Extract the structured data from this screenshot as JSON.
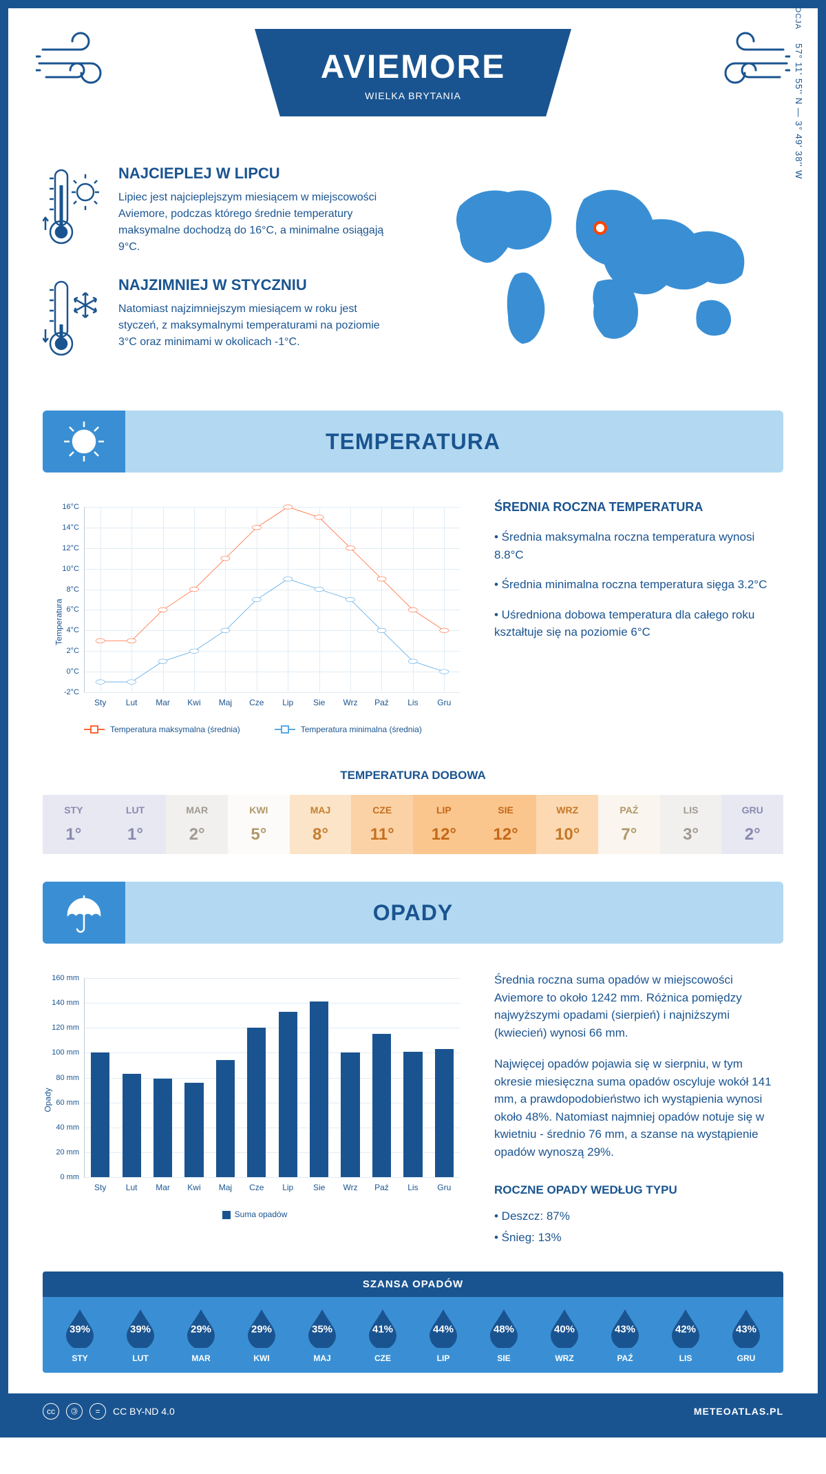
{
  "header": {
    "title": "AVIEMORE",
    "subtitle": "WIELKA BRYTANIA"
  },
  "intro": {
    "hot": {
      "heading": "NAJCIEPLEJ W LIPCU",
      "text": "Lipiec jest najcieplejszym miesiącem w miejscowości Aviemore, podczas którego średnie temperatury maksymalne dochodzą do 16°C, a minimalne osiągają 9°C."
    },
    "cold": {
      "heading": "NAJZIMNIEJ W STYCZNIU",
      "text": "Natomiast najzimniejszym miesiącem w roku jest styczeń, z maksymalnymi temperaturami na poziomie 3°C oraz minimami w okolicach -1°C."
    },
    "coords": "57° 11' 55'' N — 3° 49' 38'' W",
    "region": "SZKOCJA",
    "marker_pos": {
      "left_pct": 47,
      "top_pct": 26
    }
  },
  "temp_section": {
    "title": "TEMPERATURA",
    "side_heading": "ŚREDNIA ROCZNA TEMPERATURA",
    "bullets": [
      "• Średnia maksymalna roczna temperatura wynosi 8.8°C",
      "• Średnia minimalna roczna temperatura sięga 3.2°C",
      "• Uśredniona dobowa temperatura dla całego roku kształtuje się na poziomie 6°C"
    ],
    "chart": {
      "type": "line",
      "y_label": "Temperatura",
      "y_min": -2,
      "y_max": 16,
      "y_step": 2,
      "months": [
        "Sty",
        "Lut",
        "Mar",
        "Kwi",
        "Maj",
        "Cze",
        "Lip",
        "Sie",
        "Wrz",
        "Paź",
        "Lis",
        "Gru"
      ],
      "series": [
        {
          "label": "Temperatura maksymalna (średnia)",
          "color": "#ff6633",
          "values": [
            3,
            3,
            6,
            8,
            11,
            14,
            16,
            15,
            12,
            9,
            6,
            4
          ]
        },
        {
          "label": "Temperatura minimalna (średnia)",
          "color": "#5aa9e6",
          "values": [
            -1,
            -1,
            1,
            2,
            4,
            7,
            9,
            8,
            7,
            4,
            1,
            0
          ]
        }
      ],
      "grid_color": "#e0ecf5",
      "tick_suffix": "°C"
    },
    "daily": {
      "heading": "TEMPERATURA DOBOWA",
      "months": [
        "STY",
        "LUT",
        "MAR",
        "KWI",
        "MAJ",
        "CZE",
        "LIP",
        "SIE",
        "WRZ",
        "PAŹ",
        "LIS",
        "GRU"
      ],
      "values": [
        "1°",
        "1°",
        "2°",
        "5°",
        "8°",
        "11°",
        "12°",
        "12°",
        "10°",
        "7°",
        "3°",
        "2°"
      ],
      "cell_bg": [
        "#e8e8f2",
        "#e8e8f2",
        "#f2f0ee",
        "#fcfbf9",
        "#fce4c8",
        "#fbd2a6",
        "#fac68e",
        "#fac68e",
        "#fcd9b2",
        "#faf5ee",
        "#f2f0ee",
        "#e8e8f2"
      ],
      "cell_fg": [
        "#8a8ab0",
        "#8a8ab0",
        "#a09a90",
        "#b09868",
        "#c47f2f",
        "#c47020",
        "#c46818",
        "#c46818",
        "#c47828",
        "#b0986a",
        "#a09a90",
        "#8a8ab0"
      ]
    }
  },
  "precip_section": {
    "title": "OPADY",
    "text1": "Średnia roczna suma opadów w miejscowości Aviemore to około 1242 mm. Różnica pomiędzy najwyższymi opadami (sierpień) i najniższymi (kwiecień) wynosi 66 mm.",
    "text2": "Najwięcej opadów pojawia się w sierpniu, w tym okresie miesięczna suma opadów oscyluje wokół 141 mm, a prawdopodobieństwo ich wystąpienia wynosi około 48%. Natomiast najmniej opadów notuje się w kwietniu - średnio 76 mm, a szanse na wystąpienie opadów wynoszą 29%.",
    "chart": {
      "type": "bar",
      "y_label": "Opady",
      "y_min": 0,
      "y_max": 160,
      "y_step": 20,
      "months": [
        "Sty",
        "Lut",
        "Mar",
        "Kwi",
        "Maj",
        "Cze",
        "Lip",
        "Sie",
        "Wrz",
        "Paź",
        "Lis",
        "Gru"
      ],
      "values": [
        100,
        83,
        79,
        76,
        94,
        120,
        133,
        141,
        100,
        115,
        101,
        103
      ],
      "bar_color": "#1a5490",
      "legend_label": "Suma opadów",
      "tick_suffix": " mm"
    },
    "chance": {
      "heading": "SZANSA OPADÓW",
      "months": [
        "STY",
        "LUT",
        "MAR",
        "KWI",
        "MAJ",
        "CZE",
        "LIP",
        "SIE",
        "WRZ",
        "PAŹ",
        "LIS",
        "GRU"
      ],
      "values": [
        "39%",
        "39%",
        "29%",
        "29%",
        "35%",
        "41%",
        "44%",
        "48%",
        "40%",
        "43%",
        "42%",
        "43%"
      ],
      "drop_color": "#1a5490"
    },
    "by_type": {
      "heading": "ROCZNE OPADY WEDŁUG TYPU",
      "items": [
        "• Deszcz: 87%",
        "• Śnieg: 13%"
      ]
    }
  },
  "footer": {
    "license": "CC BY-ND 4.0",
    "site": "METEOATLAS.PL"
  },
  "colors": {
    "primary": "#1a5490",
    "light_blue": "#b3d9f2",
    "mid_blue": "#3a8fd4",
    "map_fill": "#3a8fd4"
  }
}
